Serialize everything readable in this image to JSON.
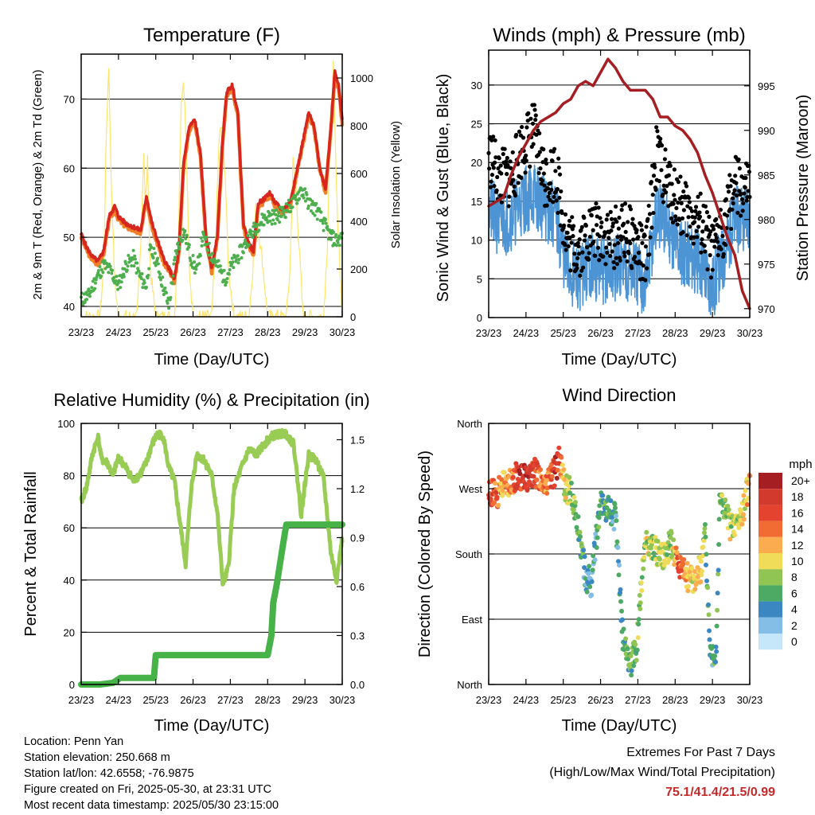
{
  "x_tick_labels": [
    "23/23",
    "24/23",
    "25/23",
    "26/23",
    "27/23",
    "28/23",
    "29/23",
    "30/23"
  ],
  "colors": {
    "temp_2m": "#d7261e",
    "temp_9m": "#f07f2a",
    "dewpoint": "#4cae4c",
    "solar": "#fee467",
    "wind": "#4d94d4",
    "gust": "#000000",
    "pressure": "#a51e22",
    "rh": "#99cc55",
    "rain": "#47b247",
    "extremes": "#c42a2a"
  },
  "chart_data": [
    {
      "id": "temperature",
      "type": "line",
      "title": "Temperature (F)",
      "xlabel": "Time (Day/UTC)",
      "ylabel": "2m & 9m T (Red, Orange) & 2m Td (Green)",
      "ylabel_right": "Solar Insolation (Yellow)",
      "ylim": [
        38.5,
        76.5
      ],
      "yticks": [
        40,
        50,
        60,
        70
      ],
      "ylim_right": [
        0,
        1100
      ],
      "yticks_right": [
        0,
        200,
        400,
        600,
        800,
        1000
      ],
      "xlim": [
        0,
        7
      ],
      "grid": true,
      "series": [
        {
          "key": "temp",
          "x": [
            0,
            0.15,
            0.3,
            0.45,
            0.6,
            0.75,
            0.9,
            1.0,
            1.2,
            1.4,
            1.6,
            1.75,
            1.9,
            2.05,
            2.2,
            2.35,
            2.5,
            2.62,
            2.75,
            2.9,
            3.05,
            3.2,
            3.35,
            3.5,
            3.65,
            3.78,
            3.9,
            4.05,
            4.2,
            4.35,
            4.5,
            4.62,
            4.75,
            4.9,
            5.05,
            5.2,
            5.4,
            5.6,
            5.8,
            5.95,
            6.1,
            6.25,
            6.4,
            6.55,
            6.7,
            6.8,
            6.9,
            7.0
          ],
          "values": [
            50.5,
            48.5,
            47.2,
            46.5,
            48,
            53,
            54.5,
            53,
            52,
            51.5,
            51,
            56,
            52,
            49.5,
            47,
            45.5,
            44,
            48,
            61,
            66,
            67,
            62,
            50,
            45.5,
            50,
            63,
            71,
            72,
            68,
            52,
            49,
            48,
            55,
            55.5,
            56.5,
            55,
            54,
            55,
            60,
            64,
            68,
            66,
            60,
            57,
            66,
            74,
            72,
            67
          ]
        },
        {
          "key": "dew",
          "x": [
            0,
            0.2,
            0.4,
            0.6,
            0.8,
            1.0,
            1.2,
            1.4,
            1.6,
            1.75,
            1.85,
            2.0,
            2.2,
            2.35,
            2.55,
            2.75,
            2.95,
            3.1,
            3.25,
            3.45,
            3.65,
            3.85,
            4.05,
            4.3,
            4.5,
            4.75,
            5.0,
            5.25,
            5.5,
            5.7,
            5.9,
            6.1,
            6.3,
            6.5,
            6.7,
            6.85,
            7.0
          ],
          "values": [
            41,
            41.5,
            44,
            46,
            45,
            43,
            46,
            47,
            44,
            43,
            48,
            47,
            43,
            40,
            48,
            51,
            47,
            45,
            50,
            48,
            46,
            44,
            46,
            48,
            50,
            52,
            53,
            53,
            54,
            55,
            57,
            55,
            54,
            52,
            50,
            49.5,
            50
          ]
        },
        {
          "key": "solar",
          "x": [
            0,
            0.3,
            0.5,
            0.6,
            0.68,
            0.74,
            0.8,
            0.9,
            1.0,
            1.3,
            1.5,
            1.6,
            1.68,
            1.72,
            1.78,
            1.85,
            2.0,
            2.3,
            2.5,
            2.6,
            2.68,
            2.75,
            2.82,
            2.9,
            3.0,
            3.3,
            3.5,
            3.6,
            3.7,
            3.78,
            3.86,
            3.95,
            4.1,
            4.3,
            4.5,
            4.6,
            4.68,
            4.76,
            4.85,
            5.0,
            5.3,
            5.5,
            5.6,
            5.68,
            5.76,
            5.84,
            5.95,
            6.3,
            6.5,
            6.6,
            6.68,
            6.76,
            6.85,
            7.0
          ],
          "values": [
            0,
            0,
            0,
            200,
            800,
            1050,
            600,
            150,
            0,
            0,
            0,
            300,
            700,
            450,
            650,
            200,
            0,
            0,
            0,
            300,
            900,
            1000,
            700,
            200,
            0,
            0,
            0,
            300,
            750,
            800,
            600,
            200,
            0,
            0,
            0,
            200,
            450,
            350,
            250,
            0,
            0,
            0,
            200,
            650,
            550,
            300,
            0,
            0,
            0,
            300,
            800,
            1050,
            500,
            0
          ]
        }
      ]
    },
    {
      "id": "winds",
      "type": "scatter",
      "title": "Winds (mph) & Pressure (mb)",
      "xlabel": "Time (Day/UTC)",
      "ylabel": "Sonic Wind & Gust (Blue, Black)",
      "ylabel_right": "Station Pressure (Maroon)",
      "ylim": [
        0,
        34.5
      ],
      "yticks": [
        0,
        5,
        10,
        15,
        20,
        25,
        30
      ],
      "ylim_right": [
        969,
        999
      ],
      "yticks_right": [
        970,
        975,
        980,
        985,
        990,
        995
      ],
      "xlim": [
        0,
        7
      ],
      "grid": true,
      "series": [
        {
          "key": "wind",
          "x": [
            0,
            0.3,
            0.6,
            0.9,
            1.2,
            1.5,
            1.8,
            2.1,
            2.4,
            2.7,
            3.0,
            3.3,
            3.6,
            3.9,
            4.2,
            4.5,
            4.8,
            5.1,
            5.4,
            5.7,
            6.0,
            6.3,
            6.6,
            6.9,
            7.0
          ],
          "values": [
            14,
            12,
            13,
            15,
            16,
            14,
            13,
            6,
            5,
            7,
            6,
            6,
            7,
            6,
            4,
            13,
            12,
            9,
            8,
            7,
            4,
            8,
            13,
            12,
            13
          ]
        },
        {
          "key": "gust",
          "x": [
            0,
            0.3,
            0.6,
            0.9,
            1.2,
            1.5,
            1.8,
            2.1,
            2.4,
            2.7,
            3.0,
            3.3,
            3.6,
            3.9,
            4.2,
            4.5,
            4.8,
            5.1,
            5.4,
            5.7,
            6.0,
            6.3,
            6.6,
            6.9,
            7.0
          ],
          "values": [
            21,
            18,
            18,
            22,
            24,
            18,
            19,
            10,
            9,
            11,
            11,
            10,
            11,
            10,
            7,
            21,
            17,
            15,
            13,
            12,
            8,
            12,
            17,
            16,
            17
          ]
        },
        {
          "key": "pressure",
          "x": [
            0,
            0.2,
            0.4,
            0.6,
            0.8,
            1.0,
            1.2,
            1.4,
            1.6,
            1.8,
            2.0,
            2.2,
            2.4,
            2.6,
            2.8,
            3.0,
            3.2,
            3.4,
            3.6,
            3.8,
            4.0,
            4.2,
            4.4,
            4.6,
            4.8,
            5.0,
            5.2,
            5.4,
            5.6,
            5.8,
            6.0,
            6.2,
            6.4,
            6.6,
            6.8,
            7.0
          ],
          "values": [
            981.5,
            982,
            982.5,
            985,
            987,
            988.5,
            990,
            991,
            991.5,
            992,
            993,
            993.5,
            995,
            995.5,
            995,
            996.5,
            998,
            997,
            995.5,
            994.5,
            994.5,
            994.5,
            993.5,
            991.5,
            991.5,
            990.5,
            990,
            989,
            987.5,
            985,
            983,
            980.5,
            978,
            976,
            972,
            970
          ]
        }
      ]
    },
    {
      "id": "humidity",
      "type": "line",
      "title": "Relative Humidity (%) & Precipitation (in)",
      "xlabel": "Time (Day/UTC)",
      "ylabel": "Percent & Total Rainfall",
      "ylim": [
        0,
        100
      ],
      "yticks": [
        0,
        20,
        40,
        60,
        80,
        100
      ],
      "ylim_right": [
        0,
        1.6
      ],
      "yticks_right": [
        "0.0",
        "0.3",
        "0.6",
        "0.9",
        "1.2",
        "1.5"
      ],
      "xlim": [
        0,
        7
      ],
      "grid": true,
      "series": [
        {
          "key": "rh",
          "x": [
            0,
            0.15,
            0.3,
            0.45,
            0.55,
            0.7,
            0.85,
            1.0,
            1.2,
            1.4,
            1.6,
            1.75,
            1.9,
            2.05,
            2.2,
            2.35,
            2.5,
            2.65,
            2.8,
            2.95,
            3.1,
            3.3,
            3.5,
            3.65,
            3.8,
            3.95,
            4.1,
            4.3,
            4.5,
            4.7,
            4.9,
            5.1,
            5.3,
            5.5,
            5.7,
            5.9,
            6.1,
            6.3,
            6.5,
            6.7,
            6.85,
            7.0
          ],
          "values": [
            70,
            76,
            88,
            95,
            86,
            85,
            80,
            87,
            83,
            78,
            81,
            85,
            92,
            96,
            95,
            83,
            78,
            62,
            46,
            75,
            88,
            86,
            80,
            66,
            38,
            45,
            75,
            83,
            90,
            88,
            92,
            95,
            96,
            96,
            92,
            65,
            88,
            86,
            79,
            50,
            40,
            56
          ]
        },
        {
          "key": "rain",
          "x": [
            0,
            0.5,
            0.85,
            1.05,
            1.5,
            1.95,
            2.0,
            2.6,
            3.5,
            4.5,
            5.0,
            5.1,
            5.15,
            5.25,
            5.4,
            5.5,
            6.0,
            6.5,
            7.0
          ],
          "values": [
            0,
            0,
            0.01,
            0.04,
            0.04,
            0.04,
            0.18,
            0.18,
            0.18,
            0.18,
            0.18,
            0.3,
            0.5,
            0.62,
            0.84,
            0.98,
            0.98,
            0.98,
            0.98
          ]
        }
      ]
    },
    {
      "id": "direction",
      "type": "scatter",
      "title": "Wind Direction",
      "xlabel": "Time (Day/UTC)",
      "ylabel": "Direction (Colored By Speed)",
      "ytick_labels": [
        "North",
        "East",
        "South",
        "West",
        "North"
      ],
      "ylim": [
        0,
        360
      ],
      "xlim": [
        0,
        7
      ],
      "grid": true,
      "legend": {
        "title": "mph",
        "placement": "right",
        "labels": [
          "20+",
          "18",
          "16",
          "14",
          "12",
          "10",
          "8",
          "6",
          "4",
          "2",
          "0"
        ],
        "colors": [
          "#a51e22",
          "#d33a2e",
          "#e3432f",
          "#f06c33",
          "#fbac4e",
          "#f0dc58",
          "#90c553",
          "#4caa64",
          "#3a87c2",
          "#84bde6",
          "#c6e6f9"
        ]
      },
      "series": [
        {
          "key": "dir",
          "x": [
            0,
            0.2,
            0.4,
            0.6,
            0.8,
            1.0,
            1.2,
            1.4,
            1.6,
            1.8,
            1.9,
            2.05,
            2.2,
            2.3,
            2.45,
            2.6,
            2.75,
            3.0,
            3.2,
            3.4,
            3.6,
            3.8,
            3.95,
            4.2,
            4.45,
            4.7,
            4.9,
            5.1,
            5.3,
            5.5,
            5.7,
            5.8,
            5.95,
            6.1,
            6.2,
            6.35,
            6.5,
            6.7,
            6.85,
            7.0
          ],
          "values": [
            265,
            262,
            275,
            282,
            290,
            285,
            292,
            288,
            280,
            295,
            310,
            270,
            268,
            250,
            200,
            150,
            140,
            250,
            240,
            230,
            60,
            30,
            45,
            205,
            185,
            180,
            195,
            165,
            150,
            145,
            160,
            210,
            40,
            50,
            260,
            240,
            215,
            225,
            245,
            285
          ],
          "speeds": [
            16,
            15,
            12,
            13,
            17,
            18,
            16,
            14,
            13,
            19,
            15,
            9,
            8,
            7,
            5,
            5,
            3,
            6,
            5,
            4,
            6,
            7,
            6,
            9,
            8,
            9,
            8,
            16,
            12,
            10,
            11,
            6,
            5,
            5,
            7,
            8,
            9,
            8,
            10,
            12
          ]
        }
      ]
    }
  ],
  "info": {
    "location": "Location: Penn Yan",
    "elevation": "Station elevation: 250.668 m",
    "latlon": "Station lat/lon: 42.6558; -76.9875",
    "created": "Figure created on Fri, 2025-05-30, at 23:31 UTC",
    "recent": "Most recent data timestamp: 2025/05/30 23:15:00"
  },
  "extremes": {
    "line1": "Extremes For Past 7 Days",
    "line2": "(High/Low/Max Wind/Total Precipitation)",
    "values": "75.1/41.4/21.5/0.99"
  }
}
